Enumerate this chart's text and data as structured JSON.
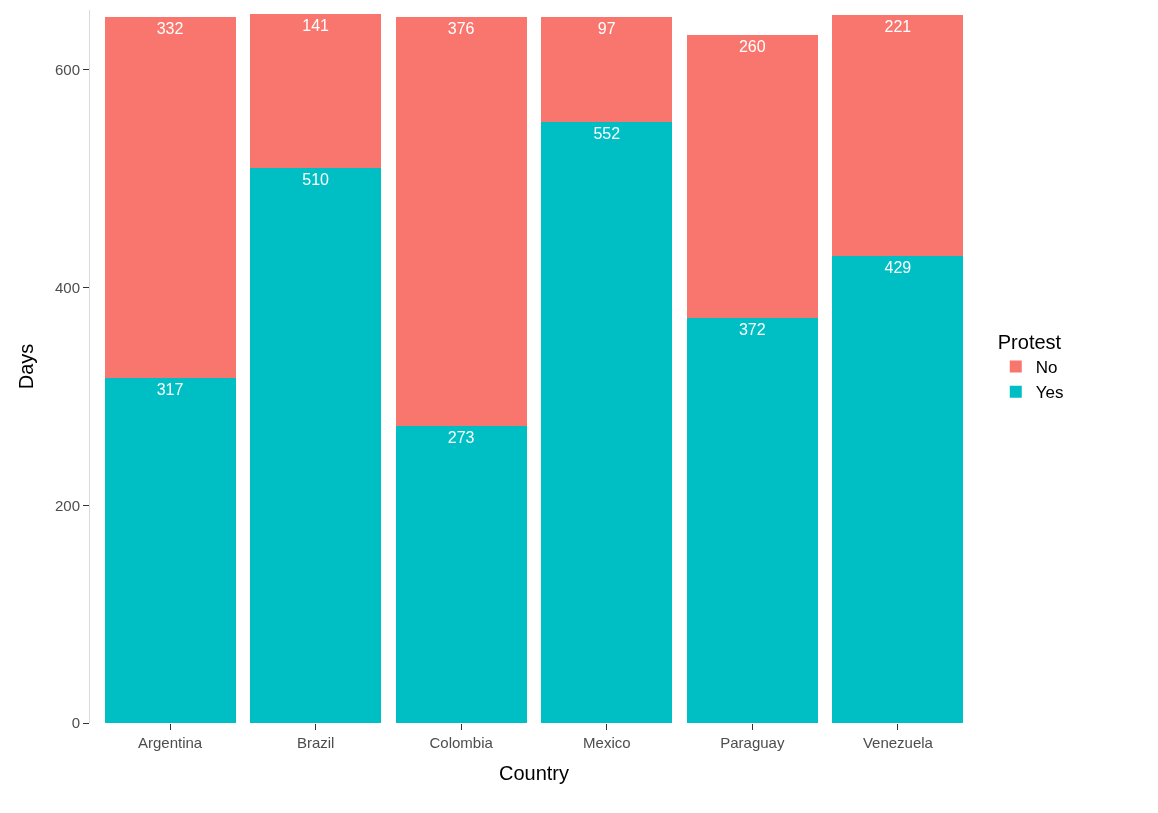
{
  "chart_data": {
    "type": "bar",
    "xlabel": "Country",
    "ylabel": "Days",
    "legend_title": "Protest",
    "categories": [
      "Argentina",
      "Brazil",
      "Colombia",
      "Mexico",
      "Paraguay",
      "Venezuela"
    ],
    "series": [
      {
        "name": "Yes",
        "color": "#00bfc4",
        "values": [
          317,
          510,
          273,
          552,
          372,
          429
        ]
      },
      {
        "name": "No",
        "color": "#f8766d",
        "values": [
          332,
          141,
          376,
          97,
          260,
          221
        ]
      }
    ],
    "stacked": true,
    "data_labels": true,
    "ylim": [
      0,
      655
    ],
    "yticks": [
      0,
      200,
      400,
      600
    ],
    "legend": "right"
  }
}
